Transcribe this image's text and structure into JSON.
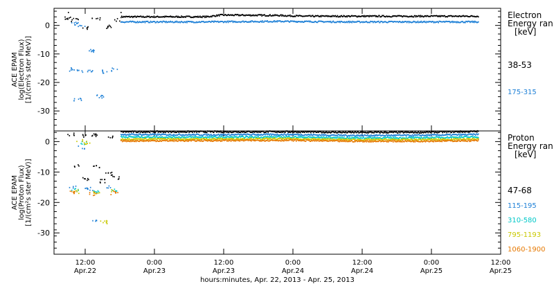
{
  "chart_data": [
    {
      "type": "scatter",
      "panel": "electron",
      "ylabel_lines": [
        "ACE EPAM",
        "log(Electron Flux)",
        "[1/(cm²s ster MeV)]"
      ],
      "ylim": [
        -37,
        6
      ],
      "yticks": [
        0,
        -10,
        -20,
        -30
      ],
      "legend_title": [
        "Electron",
        "Energy ran",
        "[keV]"
      ],
      "series": [
        {
          "name": "38-53",
          "color": "#000000",
          "quiet": [
            {
              "t": 0,
              "v": 4.5
            },
            {
              "t": 0.38,
              "v": 4.5
            }
          ],
          "gap": [
            {
              "t": 0.0,
              "v": 2.5
            },
            {
              "t": 0.05,
              "v": 1.8
            },
            {
              "t": 0.12,
              "v": -1.0
            },
            {
              "t": 0.2,
              "v": 2.2
            },
            {
              "t": 0.28,
              "v": -0.5
            },
            {
              "t": 0.35,
              "v": 2.0
            }
          ],
          "main": [
            {
              "t": 0.38,
              "v": 3.0
            },
            {
              "t": 0.8,
              "v": 3.0
            },
            {
              "t": 1.0,
              "v": 3.0
            },
            {
              "t": 1.1,
              "v": 3.6
            },
            {
              "t": 1.5,
              "v": 3.5
            },
            {
              "t": 1.7,
              "v": 3.2
            },
            {
              "t": 2.0,
              "v": 3.2
            },
            {
              "t": 2.5,
              "v": 3.2
            },
            {
              "t": 2.96,
              "v": 3.2
            }
          ]
        },
        {
          "name": "175-315",
          "color": "#1c7fd6",
          "gap": [
            {
              "t": 0.02,
              "v": -15.5
            },
            {
              "t": 0.08,
              "v": -16.0
            },
            {
              "t": 0.15,
              "v": -15.8
            },
            {
              "t": 0.25,
              "v": -16.2
            },
            {
              "t": 0.33,
              "v": -15.6
            },
            {
              "t": 0.05,
              "v": 0.5
            },
            {
              "t": 0.09,
              "v": -0.5
            },
            {
              "t": 0.07,
              "v": -26.0
            },
            {
              "t": 0.18,
              "v": -9.0
            },
            {
              "t": 0.23,
              "v": -25.0
            }
          ],
          "main": [
            {
              "t": 0.38,
              "v": 1.2
            },
            {
              "t": 1.0,
              "v": 1.2
            },
            {
              "t": 1.5,
              "v": 1.4
            },
            {
              "t": 2.0,
              "v": 1.2
            },
            {
              "t": 2.5,
              "v": 1.2
            },
            {
              "t": 2.96,
              "v": 1.2
            }
          ]
        }
      ]
    },
    {
      "type": "scatter",
      "panel": "proton",
      "ylabel_lines": [
        "ACE EPAM",
        "log(Proton Flux)",
        "[1/(cm²s ster MeV)]"
      ],
      "ylim": [
        -37,
        3.5
      ],
      "yticks": [
        0,
        -10,
        -20,
        -30
      ],
      "legend_title": [
        "Proton",
        "Energy ran",
        "[keV]"
      ],
      "series": [
        {
          "name": "47-68",
          "color": "#000000",
          "gap": [
            {
              "t": 0.02,
              "v": 2.5
            },
            {
              "t": 0.1,
              "v": 1.8
            },
            {
              "t": 0.2,
              "v": 2.2
            },
            {
              "t": 0.3,
              "v": 1.5
            },
            {
              "t": 0.05,
              "v": -8.0
            },
            {
              "t": 0.2,
              "v": -8.5
            },
            {
              "t": 0.3,
              "v": -10.5
            },
            {
              "t": 0.12,
              "v": -12.5
            },
            {
              "t": 0.25,
              "v": -13.0
            },
            {
              "t": 0.35,
              "v": -12.0
            }
          ],
          "main": [
            {
              "t": 0.38,
              "v": 3.2
            },
            {
              "t": 1.0,
              "v": 3.2
            },
            {
              "t": 1.6,
              "v": 3.2
            },
            {
              "t": 2.0,
              "v": 3.0
            },
            {
              "t": 2.5,
              "v": 3.0
            },
            {
              "t": 2.96,
              "v": 3.3
            }
          ]
        },
        {
          "name": "115-195",
          "color": "#1c7fd6",
          "gap": [
            {
              "t": 0.03,
              "v": -15.0
            },
            {
              "t": 0.15,
              "v": -15.5
            },
            {
              "t": 0.3,
              "v": -15.2
            },
            {
              "t": 0.1,
              "v": -2.0
            },
            {
              "t": 0.2,
              "v": -26.0
            }
          ],
          "main": [
            {
              "t": 0.38,
              "v": 2.3
            },
            {
              "t": 1.0,
              "v": 2.2
            },
            {
              "t": 1.6,
              "v": 2.3
            },
            {
              "t": 2.0,
              "v": 2.0
            },
            {
              "t": 2.5,
              "v": 2.0
            },
            {
              "t": 2.96,
              "v": 2.3
            }
          ]
        },
        {
          "name": "310-580",
          "color": "#00c8c8",
          "gap": [
            {
              "t": 0.05,
              "v": -16.0
            },
            {
              "t": 0.2,
              "v": -16.3
            },
            {
              "t": 0.32,
              "v": -16.0
            },
            {
              "t": 0.1,
              "v": -0.5
            }
          ],
          "main": [
            {
              "t": 0.38,
              "v": 1.5
            },
            {
              "t": 1.0,
              "v": 1.4
            },
            {
              "t": 1.6,
              "v": 1.5
            },
            {
              "t": 2.0,
              "v": 1.2
            },
            {
              "t": 2.5,
              "v": 1.2
            },
            {
              "t": 2.96,
              "v": 1.5
            }
          ]
        },
        {
          "name": "795-1193",
          "color": "#c8c800",
          "gap": [
            {
              "t": 0.05,
              "v": -16.5
            },
            {
              "t": 0.2,
              "v": -16.8
            },
            {
              "t": 0.32,
              "v": -16.4
            },
            {
              "t": 0.08,
              "v": 0.5
            },
            {
              "t": 0.14,
              "v": -0.5
            },
            {
              "t": 0.25,
              "v": -26.5
            }
          ],
          "main": [
            {
              "t": 0.38,
              "v": 0.8
            },
            {
              "t": 1.0,
              "v": 0.8
            },
            {
              "t": 1.6,
              "v": 0.9
            },
            {
              "t": 2.0,
              "v": 0.6
            },
            {
              "t": 2.5,
              "v": 0.6
            },
            {
              "t": 2.96,
              "v": 0.8
            }
          ]
        },
        {
          "name": "1060-1900",
          "color": "#e67800",
          "gap": [
            {
              "t": 0.03,
              "v": -16.8
            },
            {
              "t": 0.18,
              "v": -17.2
            },
            {
              "t": 0.33,
              "v": -16.9
            }
          ],
          "main": [
            {
              "t": 0.38,
              "v": 0.2
            },
            {
              "t": 1.0,
              "v": 0.3
            },
            {
              "t": 1.6,
              "v": 0.4
            },
            {
              "t": 2.0,
              "v": 0.1
            },
            {
              "t": 2.5,
              "v": 0.1
            },
            {
              "t": 2.96,
              "v": 0.3
            }
          ]
        }
      ]
    }
  ],
  "x_axis": {
    "xlim": [
      -0.1,
      3.125
    ],
    "ticks": [
      {
        "t": 0.125,
        "time": "12:00",
        "date": "Apr.22"
      },
      {
        "t": 0.625,
        "time": "0:00",
        "date": "Apr.23"
      },
      {
        "t": 1.125,
        "time": "12:00",
        "date": "Apr.23"
      },
      {
        "t": 1.625,
        "time": "0:00",
        "date": "Apr.24"
      },
      {
        "t": 2.125,
        "time": "12:00",
        "date": "Apr.24"
      },
      {
        "t": 2.625,
        "time": "0:00",
        "date": "Apr.25"
      },
      {
        "t": 3.125,
        "time": "12:00",
        "date": "Apr.25"
      }
    ],
    "xlabel": "hours:minutes, Apr. 22, 2013 - Apr. 25, 2013"
  }
}
